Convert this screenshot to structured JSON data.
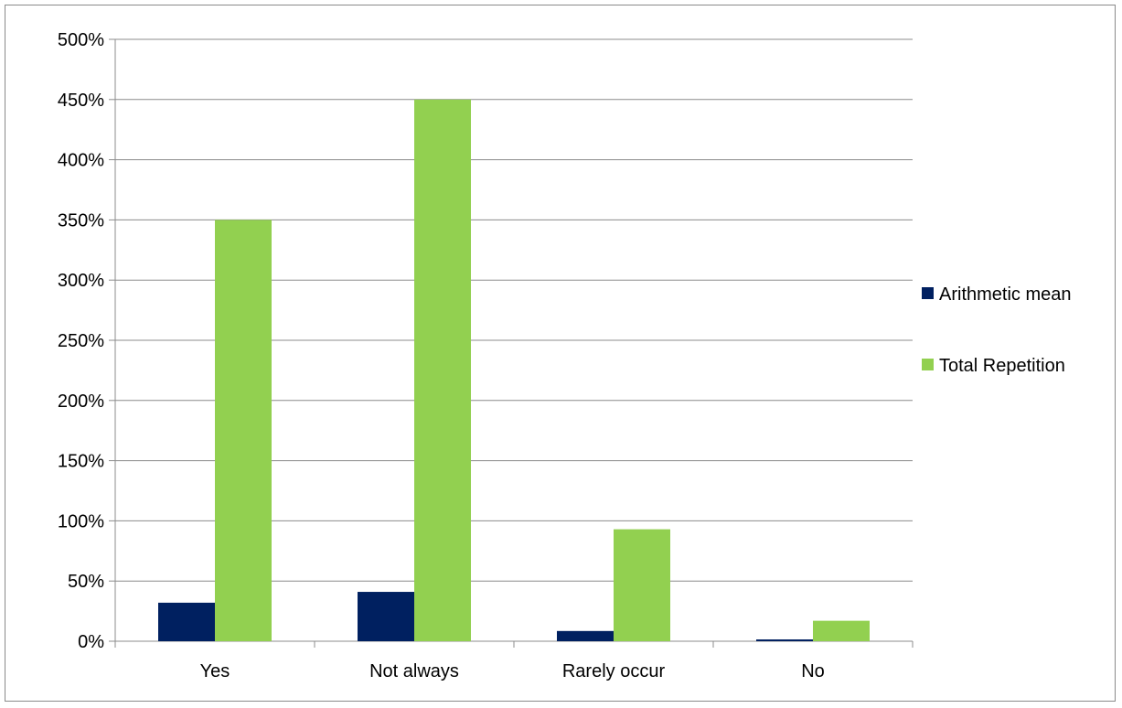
{
  "chart_data": {
    "type": "bar",
    "categories": [
      "Yes",
      "Not always",
      "Rarely occur",
      "No"
    ],
    "series": [
      {
        "name": "Arithmetic mean",
        "color": "#002060",
        "values": [
          32,
          41,
          8.5,
          1.5
        ]
      },
      {
        "name": "Total Repetition",
        "color": "#92D050",
        "values": [
          350,
          450,
          93,
          17
        ]
      }
    ],
    "ylim": [
      0,
      500
    ],
    "y_ticks": [
      0,
      50,
      100,
      150,
      200,
      250,
      300,
      350,
      400,
      450,
      500
    ],
    "y_tick_labels": [
      "0%",
      "50%",
      "100%",
      "150%",
      "200%",
      "250%",
      "300%",
      "350%",
      "400%",
      "450%",
      "500%"
    ],
    "grid": true,
    "legend_position": "right",
    "title": "",
    "xlabel": "",
    "ylabel": ""
  }
}
